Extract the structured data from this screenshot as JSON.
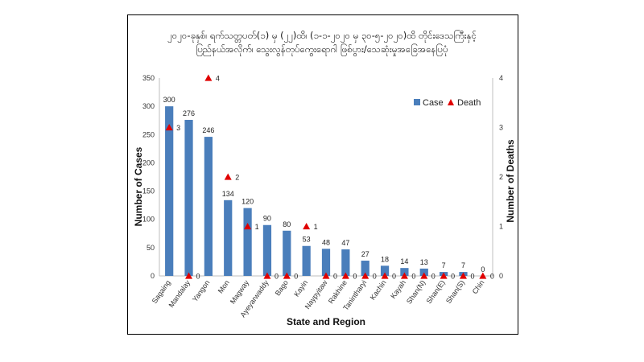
{
  "chart_data": {
    "type": "bar",
    "title_line1": "၂၀၂၀-ခုနှစ်၊ ရက်သတ္တပတ်(၁) မှ (၂၂)ထိ၊ (၁-၁-၂၀၂၀ မှ ၃၀-၅-၂၀၂၀)ထိ တိုင်းဒေသကြီးနှင့်",
    "title_line2": "ပြည်နယ်အလိုက်၊ သွေးလွန်တုပ်ကွေးရောဂါ ဖြစ်ပွား/သေဆုံးမှုအခြေအနေပြပုံ",
    "xlabel": "State and Region",
    "ylabel": "Number of Cases",
    "y2label": "Number of Deaths",
    "ylim": [
      0,
      350
    ],
    "yticks": [
      0,
      50,
      100,
      150,
      200,
      250,
      300,
      350
    ],
    "y2lim": [
      0,
      4
    ],
    "y2ticks": [
      0,
      1,
      2,
      3,
      4
    ],
    "categories": [
      "Sagaing",
      "Mandalay",
      "Yangon",
      "Mon",
      "Magway",
      "Ayeyarwaddy",
      "Bago",
      "Kayin",
      "Naypyitaw",
      "Rakhine",
      "Tanintharyi",
      "Kachin",
      "Kayah",
      "Shan(N)",
      "Shan(E)",
      "Shan(S)",
      "Chin"
    ],
    "series": [
      {
        "name": "Case",
        "kind": "bar",
        "axis": "left",
        "color": "#4a7ebb",
        "values": [
          300,
          276,
          246,
          134,
          120,
          90,
          80,
          53,
          48,
          47,
          27,
          18,
          14,
          13,
          7,
          7,
          0
        ]
      },
      {
        "name": "Death",
        "kind": "marker",
        "axis": "right",
        "color": "#e00000",
        "values": [
          3,
          0,
          4,
          2,
          1,
          0,
          0,
          1,
          0,
          0,
          0,
          0,
          0,
          0,
          0,
          0,
          0
        ]
      }
    ],
    "legend_position": "top-right",
    "grid": false
  }
}
